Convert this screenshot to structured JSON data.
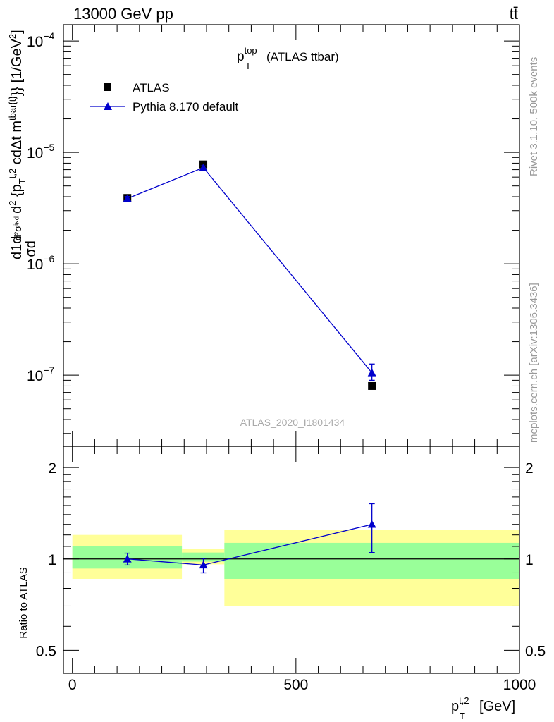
{
  "header": {
    "left_title": "13000 GeV pp",
    "right_title": "tt̄"
  },
  "side_labels": {
    "rivet": "Rivet 3.1.10,  500k events",
    "mcplots": "mcplots.cern.ch [arXiv:1306.3436]"
  },
  "analysis_id": "ATLAS_2020_I1801434",
  "chart_data": [
    {
      "type": "scatter",
      "panel": "main",
      "title": {
        "main": "p",
        "sup": "top",
        "sub": "T",
        "suffix": "(ATLAS ttbar)"
      },
      "ylabel": "d² {p_T^{t,2} cdΔt m^{tbar{t}}} [1/GeV²]",
      "ylabel_parts": {
        "frac_num": "d1d",
        "frac_den": "σd",
        "rest": "d²σⁱᶰᵈ",
        "pT_pre": "d",
        "pT_sup": "2",
        "pT_mid": " {p",
        "pT_sub": "T",
        "pT_sup2": "t,2",
        "tail": " cdΔt m",
        "tail_sup": "tbar{t}",
        "units": "}} [1/GeV",
        "units_sup": "2",
        "units_end": "]"
      },
      "yscale": "log",
      "ylim": [
        2.3e-08,
        0.00014
      ],
      "xlim": [
        -20,
        1000
      ],
      "y_ticks": [
        {
          "base": "10",
          "exp": "−4",
          "value": 0.0001
        },
        {
          "base": "10",
          "exp": "−5",
          "value": 1e-05
        },
        {
          "base": "10",
          "exp": "−6",
          "value": 1e-06
        },
        {
          "base": "10",
          "exp": "−7",
          "value": 1e-07
        }
      ],
      "legend_position": "top-left",
      "series": [
        {
          "name": "ATLAS",
          "marker": "square",
          "color": "#000000",
          "x": [
            123,
            293,
            670
          ],
          "y": [
            3.9e-06,
            7.8e-06,
            8e-08
          ]
        },
        {
          "name": "Pythia 8.170 default",
          "marker": "triangle",
          "color": "#0000cc",
          "x": [
            123,
            293,
            670
          ],
          "y": [
            3.85e-06,
            7.3e-06,
            1.05e-07
          ],
          "yerr_low": [
            1.7e-07,
            2.6e-07,
            1.5e-08
          ],
          "yerr_high": [
            1.7e-07,
            2.6e-07,
            2.1e-08
          ]
        }
      ]
    },
    {
      "type": "scatter",
      "panel": "ratio",
      "ylabel": "Ratio to ATLAS",
      "xlabel": "p_T^{t,2} [GeV]",
      "xlabel_parts": {
        "base": "p",
        "sub": "T",
        "sup": "t,2",
        "units": "[GeV]"
      },
      "yscale": "log",
      "ylim": [
        0.42,
        2.35
      ],
      "xlim": [
        -20,
        1000
      ],
      "y_ticks": [
        {
          "label": "2",
          "value": 2
        },
        {
          "label": "1",
          "value": 1
        },
        {
          "label": "0.5",
          "value": 0.5
        }
      ],
      "x_ticks": [
        {
          "label": "0",
          "value": 0
        },
        {
          "label": "500",
          "value": 500
        },
        {
          "label": "1000",
          "value": 1000
        }
      ],
      "reference_line": 1.0,
      "bands": [
        {
          "x_range": [
            0,
            245
          ],
          "yellow": [
            0.86,
            1.2
          ],
          "green": [
            0.93,
            1.1
          ]
        },
        {
          "x_range": [
            245,
            340
          ],
          "yellow": [
            0.96,
            1.08
          ],
          "green": [
            0.98,
            1.05
          ]
        },
        {
          "x_range": [
            340,
            1000
          ],
          "yellow": [
            0.7,
            1.25
          ],
          "green": [
            0.86,
            1.13
          ]
        }
      ],
      "series": [
        {
          "name": "Pythia 8.170 default",
          "marker": "triangle",
          "color": "#0000cc",
          "x": [
            123,
            293,
            670
          ],
          "y": [
            1.0,
            0.955,
            1.3
          ],
          "yerr_low": [
            0.045,
            0.055,
            0.25
          ],
          "yerr_high": [
            0.045,
            0.05,
            0.22
          ]
        }
      ]
    }
  ]
}
